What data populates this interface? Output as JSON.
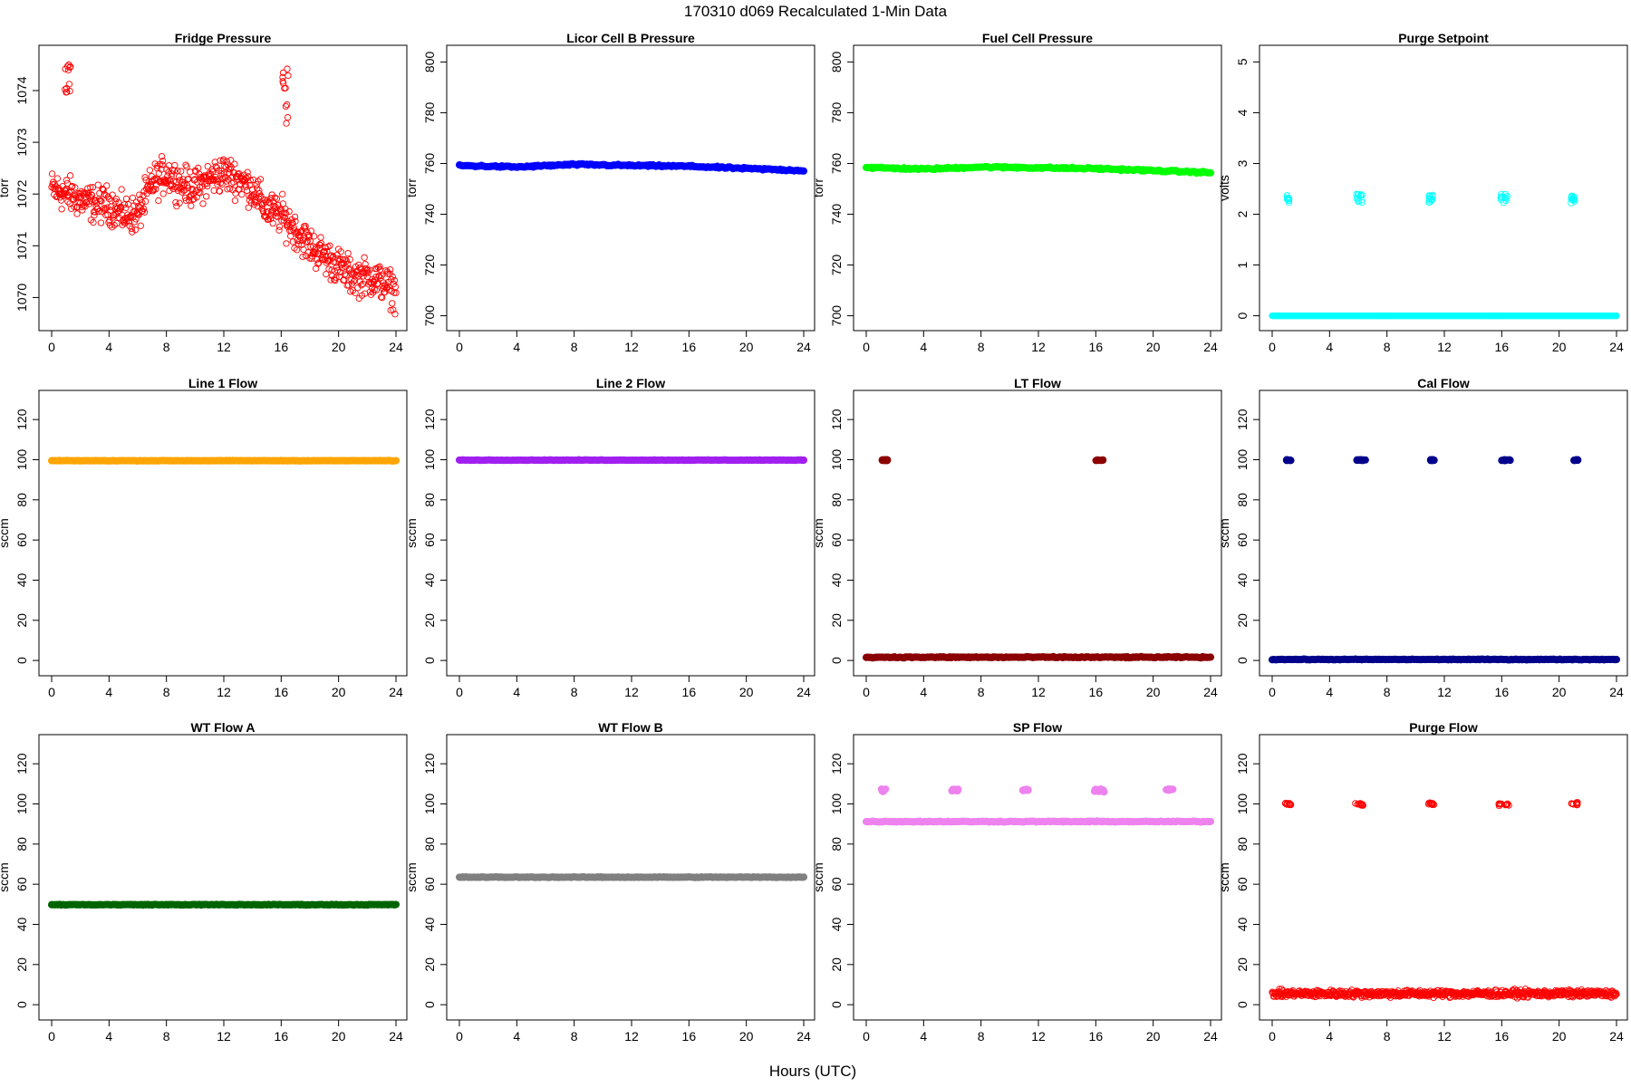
{
  "figure": {
    "title": "170310   d069   Recalculated 1-Min Data",
    "xlabel": "Hours (UTC)"
  },
  "chart_data": [
    {
      "type": "scatter",
      "title": "Fridge Pressure",
      "ylabel": "torr",
      "color": "#ff0000",
      "marker": "open",
      "xlim": [
        0,
        24
      ],
      "xticks": [
        0,
        4,
        8,
        12,
        16,
        20,
        24
      ],
      "ylim": [
        1069.5,
        1074.7
      ],
      "yticks": [
        1070,
        1071,
        1072,
        1073,
        1074
      ],
      "series": [
        {
          "baseline": [
            [
              0,
              1072.1
            ],
            [
              1,
              1072.0
            ],
            [
              2,
              1071.9
            ],
            [
              3,
              1071.8
            ],
            [
              4,
              1071.8
            ],
            [
              5,
              1071.6
            ],
            [
              6,
              1071.6
            ],
            [
              7,
              1072.2
            ],
            [
              8,
              1072.4
            ],
            [
              9,
              1072.2
            ],
            [
              10,
              1072.1
            ],
            [
              11,
              1072.3
            ],
            [
              12,
              1072.4
            ],
            [
              13,
              1072.3
            ],
            [
              14,
              1072.1
            ],
            [
              15,
              1071.7
            ],
            [
              16,
              1071.6
            ],
            [
              17,
              1071.3
            ],
            [
              18,
              1071.0
            ],
            [
              19,
              1070.8
            ],
            [
              20,
              1070.6
            ],
            [
              21,
              1070.4
            ],
            [
              22,
              1070.4
            ],
            [
              23,
              1070.3
            ],
            [
              24,
              1070.1
            ]
          ],
          "spread": 0.3,
          "spikes": [
            [
              0.9,
              1.35,
              1073.9,
              1074.5
            ],
            [
              16.1,
              16.5,
              1073.3,
              1074.5
            ]
          ]
        }
      ]
    },
    {
      "type": "scatter",
      "title": "Licor Cell B Pressure",
      "ylabel": "torr",
      "color": "#0000ff",
      "marker": "filled",
      "xlim": [
        0,
        24
      ],
      "xticks": [
        0,
        4,
        8,
        12,
        16,
        20,
        24
      ],
      "ylim": [
        697,
        803
      ],
      "yticks": [
        700,
        720,
        740,
        760,
        780,
        800
      ],
      "series": [
        {
          "baseline": [
            [
              0,
              759.2
            ],
            [
              4,
              758.6
            ],
            [
              8,
              759.6
            ],
            [
              12,
              759.2
            ],
            [
              16,
              758.9
            ],
            [
              20,
              758.0
            ],
            [
              24,
              757.2
            ]
          ],
          "spread": 0.3,
          "spikes": []
        }
      ]
    },
    {
      "type": "scatter",
      "title": "Fuel Cell Pressure",
      "ylabel": "torr",
      "color": "#00ff00",
      "marker": "filled",
      "xlim": [
        0,
        24
      ],
      "xticks": [
        0,
        4,
        8,
        12,
        16,
        20,
        24
      ],
      "ylim": [
        697,
        803
      ],
      "yticks": [
        700,
        720,
        740,
        760,
        780,
        800
      ],
      "series": [
        {
          "baseline": [
            [
              0,
              758.4
            ],
            [
              4,
              757.8
            ],
            [
              8,
              758.6
            ],
            [
              12,
              758.3
            ],
            [
              16,
              758.0
            ],
            [
              20,
              757.2
            ],
            [
              24,
              756.4
            ]
          ],
          "spread": 0.3,
          "spikes": []
        }
      ]
    },
    {
      "type": "scatter",
      "title": "Purge Setpoint",
      "ylabel": "volts",
      "color": "#00ffff",
      "marker": "open",
      "xlim": [
        0,
        24
      ],
      "xticks": [
        0,
        4,
        8,
        12,
        16,
        20,
        24
      ],
      "ylim": [
        -0.15,
        5.15
      ],
      "yticks": [
        0,
        1,
        2,
        3,
        4,
        5
      ],
      "series": [
        {
          "baseline": [
            [
              0,
              0
            ],
            [
              24,
              0
            ]
          ],
          "spread": 0.0,
          "spikes": [
            [
              1.0,
              1.2,
              2.22,
              2.38
            ],
            [
              5.8,
              6.3,
              2.22,
              2.4
            ],
            [
              10.9,
              11.2,
              2.22,
              2.38
            ],
            [
              15.8,
              16.4,
              2.22,
              2.4
            ],
            [
              20.8,
              21.1,
              2.22,
              2.38
            ]
          ]
        }
      ]
    },
    {
      "type": "scatter",
      "title": "Line 1 Flow",
      "ylabel": "sccm",
      "color": "#ffa500",
      "marker": "filled",
      "xlim": [
        0,
        24
      ],
      "xticks": [
        0,
        4,
        8,
        12,
        16,
        20,
        24
      ],
      "ylim": [
        -4,
        130
      ],
      "yticks": [
        0,
        20,
        40,
        60,
        80,
        100,
        120
      ],
      "series": [
        {
          "baseline": [
            [
              0,
              99.5
            ],
            [
              24,
              99.5
            ]
          ],
          "spread": 0.1,
          "spikes": []
        }
      ]
    },
    {
      "type": "scatter",
      "title": "Line 2 Flow",
      "ylabel": "sccm",
      "color": "#a020f0",
      "marker": "filled",
      "xlim": [
        0,
        24
      ],
      "xticks": [
        0,
        4,
        8,
        12,
        16,
        20,
        24
      ],
      "ylim": [
        -4,
        130
      ],
      "yticks": [
        0,
        20,
        40,
        60,
        80,
        100,
        120
      ],
      "series": [
        {
          "baseline": [
            [
              0,
              99.8
            ],
            [
              24,
              99.8
            ]
          ],
          "spread": 0.1,
          "spikes": []
        }
      ]
    },
    {
      "type": "scatter",
      "title": "LT Flow",
      "ylabel": "sccm",
      "color": "#8b0000",
      "marker": "filled",
      "xlim": [
        0,
        24
      ],
      "xticks": [
        0,
        4,
        8,
        12,
        16,
        20,
        24
      ],
      "ylim": [
        -4,
        130
      ],
      "yticks": [
        0,
        20,
        40,
        60,
        80,
        100,
        120
      ],
      "series": [
        {
          "baseline": [
            [
              0,
              1.6
            ],
            [
              24,
              1.6
            ]
          ],
          "spread": 0.25,
          "spikes": [
            [
              1.1,
              1.5,
              99.6,
              100.0
            ],
            [
              16.0,
              16.5,
              99.6,
              100.0
            ]
          ]
        }
      ]
    },
    {
      "type": "scatter",
      "title": "Cal Flow",
      "ylabel": "sccm",
      "color": "#00008b",
      "marker": "filled",
      "xlim": [
        0,
        24
      ],
      "xticks": [
        0,
        4,
        8,
        12,
        16,
        20,
        24
      ],
      "ylim": [
        -4,
        130
      ],
      "yticks": [
        0,
        20,
        40,
        60,
        80,
        100,
        120
      ],
      "series": [
        {
          "baseline": [
            [
              0,
              0.5
            ],
            [
              24,
              0.5
            ]
          ],
          "spread": 0.15,
          "spikes": [
            [
              1.0,
              1.3,
              99.6,
              100.0
            ],
            [
              5.9,
              6.5,
              99.6,
              100.0
            ],
            [
              11.0,
              11.3,
              99.6,
              100.0
            ],
            [
              16.0,
              16.6,
              99.6,
              100.0
            ],
            [
              21.0,
              21.3,
              99.6,
              100.0
            ]
          ]
        }
      ]
    },
    {
      "type": "scatter",
      "title": "WT Flow A",
      "ylabel": "sccm",
      "color": "#006400",
      "marker": "filled",
      "xlim": [
        0,
        24
      ],
      "xticks": [
        0,
        4,
        8,
        12,
        16,
        20,
        24
      ],
      "ylim": [
        -4,
        130
      ],
      "yticks": [
        0,
        20,
        40,
        60,
        80,
        100,
        120
      ],
      "series": [
        {
          "baseline": [
            [
              0,
              49.8
            ],
            [
              24,
              49.8
            ]
          ],
          "spread": 0.15,
          "spikes": []
        }
      ]
    },
    {
      "type": "scatter",
      "title": "WT Flow B",
      "ylabel": "sccm",
      "color": "#808080",
      "marker": "filled",
      "xlim": [
        0,
        24
      ],
      "xticks": [
        0,
        4,
        8,
        12,
        16,
        20,
        24
      ],
      "ylim": [
        -4,
        130
      ],
      "yticks": [
        0,
        20,
        40,
        60,
        80,
        100,
        120
      ],
      "series": [
        {
          "baseline": [
            [
              0,
              63.5
            ],
            [
              24,
              63.5
            ]
          ],
          "spread": 0.15,
          "spikes": []
        }
      ]
    },
    {
      "type": "scatter",
      "title": "SP Flow",
      "ylabel": "sccm",
      "color": "#ee82ee",
      "marker": "filled",
      "xlim": [
        0,
        24
      ],
      "xticks": [
        0,
        4,
        8,
        12,
        16,
        20,
        24
      ],
      "ylim": [
        -4,
        130
      ],
      "yticks": [
        0,
        20,
        40,
        60,
        80,
        100,
        120
      ],
      "series": [
        {
          "baseline": [
            [
              0,
              91.2
            ],
            [
              24,
              91.2
            ]
          ],
          "spread": 0.2,
          "spikes": [
            [
              1.0,
              1.5,
              106.0,
              107.5
            ],
            [
              5.9,
              6.5,
              106.5,
              107.5
            ],
            [
              10.9,
              11.3,
              106.5,
              107.5
            ],
            [
              15.9,
              16.6,
              106.0,
              107.5
            ],
            [
              20.9,
              21.4,
              106.5,
              107.5
            ]
          ]
        }
      ]
    },
    {
      "type": "scatter",
      "title": "Purge Flow",
      "ylabel": "sccm",
      "color": "#ff0000",
      "marker": "open",
      "xlim": [
        0,
        24
      ],
      "xticks": [
        0,
        4,
        8,
        12,
        16,
        20,
        24
      ],
      "ylim": [
        -4,
        130
      ],
      "yticks": [
        0,
        20,
        40,
        60,
        80,
        100,
        120
      ],
      "series": [
        {
          "baseline": [
            [
              0,
              5.5
            ],
            [
              24,
              5.5
            ]
          ],
          "spread": 1.5,
          "spikes": [
            [
              0.9,
              1.3,
              99.4,
              100.4
            ],
            [
              5.8,
              6.4,
              99.0,
              100.6
            ],
            [
              10.9,
              11.3,
              99.6,
              100.6
            ],
            [
              15.8,
              16.5,
              99.0,
              100.4
            ],
            [
              20.8,
              21.3,
              99.4,
              100.8
            ]
          ]
        }
      ]
    }
  ]
}
